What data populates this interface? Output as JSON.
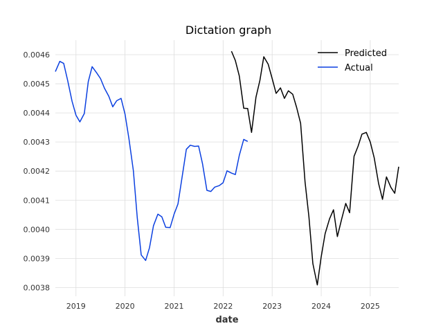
{
  "chart_data": {
    "type": "line",
    "title": "Dictation graph",
    "xlabel": "date",
    "ylabel": "",
    "xlim": [
      2018.58,
      2025.58
    ],
    "ylim": [
      0.00377,
      0.00465
    ],
    "x_ticks": [
      2019,
      2020,
      2021,
      2022,
      2023,
      2024,
      2025
    ],
    "x_tick_labels": [
      "2019",
      "2020",
      "2021",
      "2022",
      "2023",
      "2024",
      "2025"
    ],
    "y_ticks": [
      0.0038,
      0.0039,
      0.004,
      0.0041,
      0.0042,
      0.0043,
      0.0044,
      0.0045,
      0.0046
    ],
    "y_tick_labels": [
      "0.0038",
      "0.0039",
      "0.0040",
      "0.0041",
      "0.0042",
      "0.0043",
      "0.0044",
      "0.0045",
      "0.0046"
    ],
    "grid": true,
    "legend_position": "top-right",
    "series": [
      {
        "name": "Predicted",
        "color": "#000000",
        "x": [
          2022.17,
          2022.25,
          2022.33,
          2022.42,
          2022.5,
          2022.58,
          2022.67,
          2022.75,
          2022.83,
          2022.92,
          2023.0,
          2023.08,
          2023.17,
          2023.25,
          2023.33,
          2023.42,
          2023.5,
          2023.58,
          2023.67,
          2023.75,
          2023.83,
          2023.92,
          2024.0,
          2024.08,
          2024.17,
          2024.25,
          2024.33,
          2024.42,
          2024.5,
          2024.58,
          2024.67,
          2024.75,
          2024.83,
          2024.92,
          2025.0,
          2025.08,
          2025.17,
          2025.25,
          2025.33,
          2025.42,
          2025.5,
          2025.58
        ],
        "y": [
          0.004612,
          0.00458,
          0.004527,
          0.004416,
          0.004415,
          0.004333,
          0.004454,
          0.004512,
          0.004593,
          0.004567,
          0.004518,
          0.004467,
          0.004486,
          0.00445,
          0.004476,
          0.004464,
          0.004418,
          0.004364,
          0.004163,
          0.004043,
          0.003882,
          0.003809,
          0.003905,
          0.003985,
          0.004036,
          0.004067,
          0.003975,
          0.004037,
          0.004089,
          0.004057,
          0.004251,
          0.004285,
          0.004327,
          0.004333,
          0.0043,
          0.004246,
          0.004158,
          0.004103,
          0.00418,
          0.004144,
          0.004124,
          0.004215
        ]
      },
      {
        "name": "Actual",
        "color": "#0a3fe0",
        "x": [
          2018.58,
          2018.67,
          2018.75,
          2018.83,
          2018.92,
          2019.0,
          2019.08,
          2019.17,
          2019.25,
          2019.33,
          2019.42,
          2019.5,
          2019.58,
          2019.67,
          2019.75,
          2019.83,
          2019.92,
          2020.0,
          2020.08,
          2020.17,
          2020.25,
          2020.33,
          2020.42,
          2020.5,
          2020.58,
          2020.67,
          2020.75,
          2020.83,
          2020.92,
          2021.0,
          2021.08,
          2021.17,
          2021.25,
          2021.33,
          2021.42,
          2021.5,
          2021.58,
          2021.67,
          2021.75,
          2021.83,
          2021.92,
          2022.0,
          2022.08,
          2022.17,
          2022.25,
          2022.33,
          2022.42,
          2022.5
        ],
        "y": [
          0.004542,
          0.004577,
          0.00457,
          0.004512,
          0.00444,
          0.004392,
          0.004369,
          0.004398,
          0.004507,
          0.004559,
          0.004538,
          0.004518,
          0.004485,
          0.004457,
          0.004421,
          0.004442,
          0.00445,
          0.004396,
          0.004311,
          0.004201,
          0.00404,
          0.003912,
          0.003893,
          0.003937,
          0.004012,
          0.004052,
          0.004043,
          0.004007,
          0.004006,
          0.004052,
          0.004087,
          0.004186,
          0.004275,
          0.004289,
          0.004285,
          0.004286,
          0.004225,
          0.004134,
          0.00413,
          0.004145,
          0.00415,
          0.00416,
          0.004201,
          0.004193,
          0.004188,
          0.004254,
          0.004309,
          0.004302
        ]
      }
    ]
  }
}
